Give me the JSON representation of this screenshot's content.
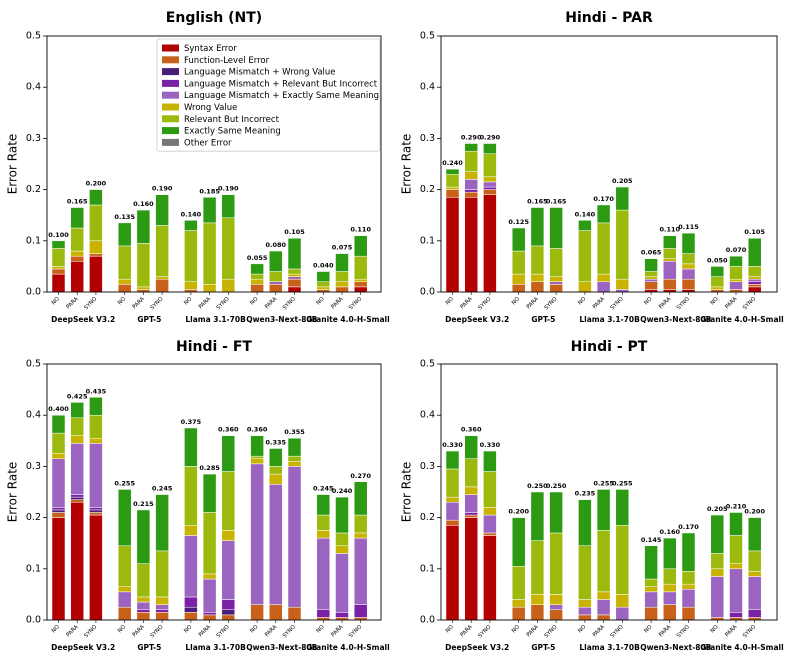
{
  "chart_data": {
    "type": "bar",
    "stacked": true,
    "ylabel": "Error Rate",
    "ylim": [
      0,
      0.5
    ],
    "yticks": [
      "0.0",
      "0.1",
      "0.2",
      "0.3",
      "0.4",
      "0.5"
    ],
    "models": [
      "DeepSeek V3.2",
      "GPT-5",
      "Llama 3.1-70B",
      "Qwen3-Next-80B",
      "Granite 4.0-H-Small"
    ],
    "conditions": [
      "NO",
      "PARA",
      "SYNO"
    ],
    "legend": {
      "position": "upper-center",
      "entries": [
        {
          "label": "Syntax Error",
          "color": "#b30000"
        },
        {
          "label": "Function-Level Error",
          "color": "#c8621a"
        },
        {
          "label": "Language Mismatch + Wrong Value",
          "color": "#4a1d7a"
        },
        {
          "label": "Language Mismatch + Relevant But Incorrect",
          "color": "#7a22a6"
        },
        {
          "label": "Language Mismatch + Exactly Same Meaning",
          "color": "#9a64c0"
        },
        {
          "label": "Wrong Value",
          "color": "#c8b400"
        },
        {
          "label": "Relevant But Incorrect",
          "color": "#9cb90e"
        },
        {
          "label": "Exactly Same Meaning",
          "color": "#2c9a12"
        },
        {
          "label": "Other Error",
          "color": "#777777"
        }
      ]
    },
    "panels": [
      {
        "title": "English (NT)",
        "totals": [
          "0.100",
          "0.165",
          "0.200",
          "0.135",
          "0.160",
          "0.190",
          "0.140",
          "0.185",
          "0.190",
          "0.055",
          "0.080",
          "0.105",
          "0.040",
          "0.075",
          "0.110"
        ],
        "stacks": [
          [
            0.035,
            0.01,
            0,
            0,
            0,
            0.005,
            0.035,
            0.015,
            0
          ],
          [
            0.06,
            0.01,
            0,
            0,
            0,
            0.01,
            0.045,
            0.04,
            0
          ],
          [
            0.07,
            0.005,
            0,
            0,
            0,
            0.025,
            0.07,
            0.03,
            0
          ],
          [
            0,
            0.015,
            0,
            0,
            0,
            0.01,
            0.065,
            0.045,
            0
          ],
          [
            0,
            0.005,
            0,
            0,
            0,
            0.005,
            0.085,
            0.065,
            0
          ],
          [
            0,
            0.025,
            0,
            0,
            0,
            0.005,
            0.1,
            0.06,
            0
          ],
          [
            0,
            0.005,
            0,
            0,
            0,
            0.015,
            0.1,
            0.02,
            0
          ],
          [
            0,
            0,
            0,
            0,
            0,
            0.015,
            0.12,
            0.05,
            0
          ],
          [
            0,
            0,
            0,
            0,
            0,
            0.025,
            0.12,
            0.045,
            0
          ],
          [
            0,
            0.015,
            0,
            0,
            0,
            0.01,
            0.01,
            0.02,
            0
          ],
          [
            0,
            0.015,
            0,
            0,
            0.005,
            0,
            0.02,
            0.04,
            0
          ],
          [
            0.01,
            0.015,
            0,
            0,
            0.005,
            0.005,
            0.01,
            0.06,
            0
          ],
          [
            0,
            0.005,
            0,
            0,
            0,
            0.005,
            0.01,
            0.02,
            0
          ],
          [
            0,
            0.01,
            0,
            0,
            0,
            0.01,
            0.02,
            0.035,
            0
          ],
          [
            0.01,
            0.01,
            0,
            0,
            0,
            0.005,
            0.045,
            0.04,
            0
          ]
        ]
      },
      {
        "title": "Hindi - PAR",
        "totals": [
          "0.240",
          "0.290",
          "0.290",
          "0.125",
          "0.165",
          "0.165",
          "0.140",
          "0.170",
          "0.205",
          "0.065",
          "0.110",
          "0.115",
          "0.050",
          "0.070",
          "0.105"
        ],
        "stacks": [
          [
            0.185,
            0.015,
            0,
            0,
            0,
            0.005,
            0.025,
            0.01,
            0
          ],
          [
            0.185,
            0.01,
            0,
            0.005,
            0.02,
            0.015,
            0.04,
            0.015,
            0
          ],
          [
            0.19,
            0.01,
            0,
            0.005,
            0.01,
            0.01,
            0.045,
            0.02,
            0
          ],
          [
            0,
            0.015,
            0,
            0,
            0,
            0.02,
            0.045,
            0.045,
            0
          ],
          [
            0,
            0.02,
            0,
            0,
            0,
            0.015,
            0.055,
            0.075,
            0
          ],
          [
            0,
            0.015,
            0,
            0,
            0.005,
            0.01,
            0.055,
            0.08,
            0
          ],
          [
            0,
            0,
            0,
            0,
            0,
            0.02,
            0.1,
            0.02,
            0
          ],
          [
            0,
            0,
            0,
            0,
            0.02,
            0.015,
            0.1,
            0.035,
            0
          ],
          [
            0,
            0,
            0,
            0,
            0.005,
            0.02,
            0.135,
            0.045,
            0
          ],
          [
            0.005,
            0.015,
            0,
            0,
            0.005,
            0.005,
            0.01,
            0.025,
            0
          ],
          [
            0.005,
            0.02,
            0,
            0,
            0.035,
            0.005,
            0.02,
            0.025,
            0
          ],
          [
            0.005,
            0.02,
            0,
            0,
            0.02,
            0.01,
            0.02,
            0.04,
            0
          ],
          [
            0,
            0.005,
            0,
            0,
            0,
            0.005,
            0.02,
            0.02,
            0
          ],
          [
            0,
            0.005,
            0,
            0,
            0.015,
            0.005,
            0.025,
            0.02,
            0
          ],
          [
            0.01,
            0.005,
            0,
            0.005,
            0.005,
            0.005,
            0.02,
            0.055,
            0
          ]
        ]
      },
      {
        "title": "Hindi - FT",
        "totals": [
          "0.400",
          "0.425",
          "0.435",
          "0.255",
          "0.215",
          "0.245",
          "0.375",
          "0.285",
          "0.360",
          "0.360",
          "0.335",
          "0.355",
          "0.245",
          "0.240",
          "0.270"
        ],
        "stacks": [
          [
            0.2,
            0.01,
            0.005,
            0.005,
            0.095,
            0.01,
            0.04,
            0.035,
            0
          ],
          [
            0.23,
            0.005,
            0.005,
            0.005,
            0.1,
            0.015,
            0.035,
            0.03,
            0
          ],
          [
            0.205,
            0.005,
            0.005,
            0.005,
            0.125,
            0.01,
            0.045,
            0.035,
            0
          ],
          [
            0,
            0.025,
            0,
            0,
            0.03,
            0.01,
            0.08,
            0.11,
            0
          ],
          [
            0,
            0.015,
            0,
            0.005,
            0.015,
            0.01,
            0.065,
            0.105,
            0
          ],
          [
            0,
            0.015,
            0,
            0.005,
            0.01,
            0.015,
            0.09,
            0.11,
            0
          ],
          [
            0,
            0.015,
            0.01,
            0.02,
            0.12,
            0.02,
            0.115,
            0.075,
            0
          ],
          [
            0,
            0.01,
            0,
            0.005,
            0.065,
            0.01,
            0.12,
            0.075,
            0
          ],
          [
            0,
            0.01,
            0.01,
            0.02,
            0.115,
            0.02,
            0.115,
            0.07,
            0
          ],
          [
            0,
            0.03,
            0,
            0,
            0.275,
            0.01,
            0.005,
            0.04,
            0
          ],
          [
            0,
            0.03,
            0,
            0,
            0.235,
            0.02,
            0.015,
            0.035,
            0
          ],
          [
            0,
            0.025,
            0,
            0,
            0.275,
            0.01,
            0.01,
            0.035,
            0
          ],
          [
            0,
            0.005,
            0,
            0.015,
            0.14,
            0.015,
            0.03,
            0.04,
            0
          ],
          [
            0,
            0.005,
            0,
            0.01,
            0.115,
            0.015,
            0.025,
            0.07,
            0
          ],
          [
            0,
            0.005,
            0,
            0.025,
            0.13,
            0.01,
            0.035,
            0.065,
            0
          ]
        ]
      },
      {
        "title": "Hindi - PT",
        "totals": [
          "0.330",
          "0.360",
          "0.330",
          "0.200",
          "0.250",
          "0.250",
          "0.235",
          "0.255",
          "0.255",
          "0.145",
          "0.160",
          "0.170",
          "0.205",
          "0.210",
          "0.200"
        ],
        "stacks": [
          [
            0.185,
            0.01,
            0,
            0,
            0.035,
            0.01,
            0.055,
            0.035,
            0
          ],
          [
            0.2,
            0.005,
            0,
            0.005,
            0.035,
            0.015,
            0.055,
            0.045,
            0
          ],
          [
            0.165,
            0.005,
            0,
            0,
            0.035,
            0.015,
            0.07,
            0.04,
            0
          ],
          [
            0,
            0.025,
            0,
            0,
            0,
            0.015,
            0.065,
            0.095,
            0
          ],
          [
            0,
            0.03,
            0,
            0,
            0,
            0.02,
            0.105,
            0.095,
            0
          ],
          [
            0,
            0.02,
            0,
            0,
            0.01,
            0.02,
            0.12,
            0.08,
            0
          ],
          [
            0,
            0.01,
            0,
            0,
            0.015,
            0.015,
            0.105,
            0.09,
            0
          ],
          [
            0,
            0.01,
            0,
            0,
            0.03,
            0.015,
            0.12,
            0.08,
            0
          ],
          [
            0,
            0,
            0,
            0,
            0.025,
            0.025,
            0.135,
            0.07,
            0
          ],
          [
            0,
            0.025,
            0,
            0,
            0.03,
            0.01,
            0.015,
            0.065,
            0
          ],
          [
            0,
            0.03,
            0,
            0,
            0.025,
            0.015,
            0.03,
            0.06,
            0
          ],
          [
            0,
            0.025,
            0,
            0,
            0.035,
            0.01,
            0.025,
            0.075,
            0
          ],
          [
            0,
            0.005,
            0,
            0,
            0.08,
            0.015,
            0.03,
            0.075,
            0
          ],
          [
            0,
            0.005,
            0,
            0.01,
            0.085,
            0.01,
            0.055,
            0.045,
            0
          ],
          [
            0,
            0.005,
            0,
            0.015,
            0.065,
            0.01,
            0.04,
            0.065,
            0
          ]
        ]
      }
    ]
  }
}
